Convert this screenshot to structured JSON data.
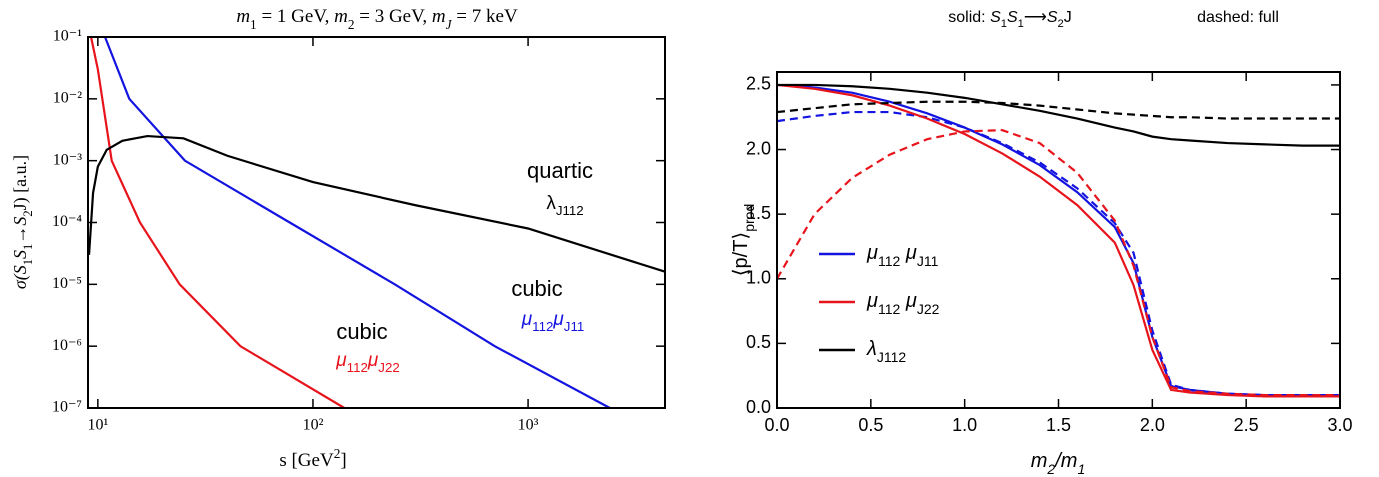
{
  "chart_data": [
    {
      "type": "line",
      "title": [
        {
          "t": "m",
          "i": true
        },
        {
          "t": "1",
          "s": "sub"
        },
        {
          "t": " = 1 GeV, "
        },
        {
          "t": "m",
          "i": true
        },
        {
          "t": "2",
          "s": "sub"
        },
        {
          "t": " = 3 GeV, "
        },
        {
          "t": "m",
          "i": true
        },
        {
          "t": "J",
          "s": "sub",
          "i": true
        },
        {
          "t": " = 7 keV"
        }
      ],
      "xlabel": [
        {
          "t": "s [GeV"
        },
        {
          "t": "2",
          "s": "sup"
        },
        {
          "t": "]"
        }
      ],
      "ylabel": [
        {
          "t": "σ(",
          "i": true
        },
        {
          "t": "S",
          "i": true
        },
        {
          "t": "1",
          "s": "sub"
        },
        {
          "t": "S",
          "i": true
        },
        {
          "t": "1",
          "s": "sub"
        },
        {
          "t": "→"
        },
        {
          "t": "S",
          "i": true
        },
        {
          "t": "2",
          "s": "sub"
        },
        {
          "t": "J) [a.u.]"
        }
      ],
      "xscale": "log",
      "yscale": "log",
      "xlim": [
        9,
        4330
      ],
      "ylim": [
        1e-07,
        0.1
      ],
      "xticks": [
        {
          "value": 10,
          "label": "10¹"
        },
        {
          "value": 100,
          "label": "10²"
        },
        {
          "value": 1000,
          "label": "10³"
        }
      ],
      "yticks": [
        {
          "value": 0.1,
          "label": "10⁻¹"
        },
        {
          "value": 0.01,
          "label": "10⁻²"
        },
        {
          "value": 0.001,
          "label": "10⁻³"
        },
        {
          "value": 0.0001,
          "label": "10⁻⁴"
        },
        {
          "value": 1e-05,
          "label": "10⁻⁵"
        },
        {
          "value": 1e-06,
          "label": "10⁻⁶"
        },
        {
          "value": 1e-07,
          "label": "10⁻⁷"
        }
      ],
      "series": [
        {
          "color": "#e8141c",
          "label": "cubic",
          "formula": [
            {
              "t": "μ",
              "i": true
            },
            {
              "t": "112",
              "s": "sub"
            },
            {
              "t": "μ",
              "i": true
            },
            {
              "t": "J22",
              "s": "sub"
            }
          ],
          "x": [
            9.3,
            10,
            11.6,
            15.7,
            24,
            46,
            140
          ],
          "values": [
            0.1,
            0.03,
            0.001,
            0.0001,
            1e-05,
            1e-06,
            1e-07
          ]
        },
        {
          "color": "#1414e0",
          "label": "cubic",
          "formula": [
            {
              "t": "μ",
              "i": true
            },
            {
              "t": "112",
              "s": "sub"
            },
            {
              "t": "μ",
              "i": true
            },
            {
              "t": "J11",
              "s": "sub"
            }
          ],
          "x": [
            10.8,
            14,
            25.4,
            78,
            240,
            700,
            2400
          ],
          "values": [
            0.1,
            0.01,
            0.001,
            0.0001,
            1e-05,
            1e-06,
            1e-07
          ]
        },
        {
          "color": "#000000",
          "label": "quartic",
          "formula": [
            {
              "t": "λ"
            },
            {
              "t": "J112",
              "s": "sub"
            }
          ],
          "x": [
            9.1,
            9.5,
            10,
            11,
            13,
            17,
            25,
            40,
            100,
            300,
            1000,
            4330
          ],
          "values": [
            3e-05,
            0.0003,
            0.0008,
            0.0015,
            0.0021,
            0.0025,
            0.0023,
            0.0012,
            0.00045,
            0.00019,
            8e-05,
            1.6e-05
          ]
        }
      ]
    },
    {
      "type": "line",
      "title": [
        {
          "t": "solid: "
        },
        {
          "t": "S",
          "i": true
        },
        {
          "t": "1",
          "s": "sub"
        },
        {
          "t": "S",
          "i": true
        },
        {
          "t": "1",
          "s": "sub"
        },
        {
          "t": "⟶"
        },
        {
          "t": "S",
          "i": true
        },
        {
          "t": "2",
          "s": "sub"
        },
        {
          "t": "J"
        }
      ],
      "subtitle": "dashed: full",
      "xlabel": [
        {
          "t": "m",
          "i": true
        },
        {
          "t": "2",
          "s": "sub",
          "i": true
        },
        {
          "t": "/",
          "i": true
        },
        {
          "t": "m",
          "i": true
        },
        {
          "t": "1",
          "s": "sub",
          "i": true
        }
      ],
      "ylabel": [
        {
          "t": "⟨p/T⟩"
        },
        {
          "t": "prod",
          "s": "sub"
        }
      ],
      "xlim": [
        0,
        3
      ],
      "ylim": [
        0,
        2.6
      ],
      "xticks": [
        {
          "value": 0,
          "label": "0.0"
        },
        0.5,
        {
          "value": 1,
          "label": "1.0"
        },
        1.5,
        {
          "value": 2,
          "label": "2.0"
        },
        2.5,
        {
          "value": 3,
          "label": "3.0"
        }
      ],
      "yticks": [
        {
          "value": 0,
          "label": "0.0"
        },
        0.5,
        {
          "value": 1,
          "label": "1.0"
        },
        1.5,
        {
          "value": 2,
          "label": "2.0"
        },
        2.5
      ],
      "legend": "center left",
      "x": [
        0,
        0.2,
        0.4,
        0.6,
        0.8,
        1.0,
        1.2,
        1.4,
        1.6,
        1.8,
        1.9,
        2.0,
        2.1,
        2.2,
        2.4,
        2.6,
        2.8,
        3.0
      ],
      "series": [
        {
          "name": [
            {
              "t": "μ",
              "i": true
            },
            {
              "t": "112",
              "s": "sub"
            },
            {
              "t": " "
            },
            {
              "t": "μ",
              "i": true
            },
            {
              "t": "J11",
              "s": "sub"
            }
          ],
          "color": "#1414e0",
          "values": [
            2.5,
            2.48,
            2.44,
            2.37,
            2.28,
            2.17,
            2.04,
            1.88,
            1.67,
            1.4,
            1.12,
            0.55,
            0.17,
            0.14,
            0.11,
            0.1,
            0.1,
            0.1
          ],
          "full_values": [
            2.22,
            2.26,
            2.29,
            2.29,
            2.25,
            2.17,
            2.05,
            1.9,
            1.7,
            1.43,
            1.2,
            0.6,
            0.18,
            0.14,
            0.11,
            0.1,
            0.1,
            0.1
          ]
        },
        {
          "name": [
            {
              "t": "μ",
              "i": true
            },
            {
              "t": "112",
              "s": "sub"
            },
            {
              "t": " "
            },
            {
              "t": "μ",
              "i": true
            },
            {
              "t": "J22",
              "s": "sub"
            }
          ],
          "color": "#e8141c",
          "values": [
            2.5,
            2.47,
            2.42,
            2.34,
            2.24,
            2.12,
            1.97,
            1.79,
            1.57,
            1.28,
            0.95,
            0.45,
            0.14,
            0.12,
            0.1,
            0.09,
            0.09,
            0.09
          ],
          "full_values": [
            1.0,
            1.5,
            1.78,
            1.96,
            2.08,
            2.14,
            2.15,
            2.05,
            1.82,
            1.45,
            1.1,
            0.55,
            0.16,
            0.13,
            0.11,
            0.1,
            0.1,
            0.1
          ]
        },
        {
          "name": [
            {
              "t": "λ",
              "i": true
            },
            {
              "t": "J112",
              "s": "sub"
            }
          ],
          "color": "#000000",
          "values": [
            2.5,
            2.5,
            2.49,
            2.47,
            2.44,
            2.4,
            2.35,
            2.3,
            2.24,
            2.17,
            2.14,
            2.1,
            2.08,
            2.07,
            2.05,
            2.04,
            2.03,
            2.03
          ],
          "full_values": [
            2.29,
            2.32,
            2.35,
            2.36,
            2.37,
            2.37,
            2.36,
            2.34,
            2.31,
            2.28,
            2.27,
            2.26,
            2.25,
            2.25,
            2.24,
            2.24,
            2.24,
            2.24
          ]
        }
      ]
    }
  ]
}
